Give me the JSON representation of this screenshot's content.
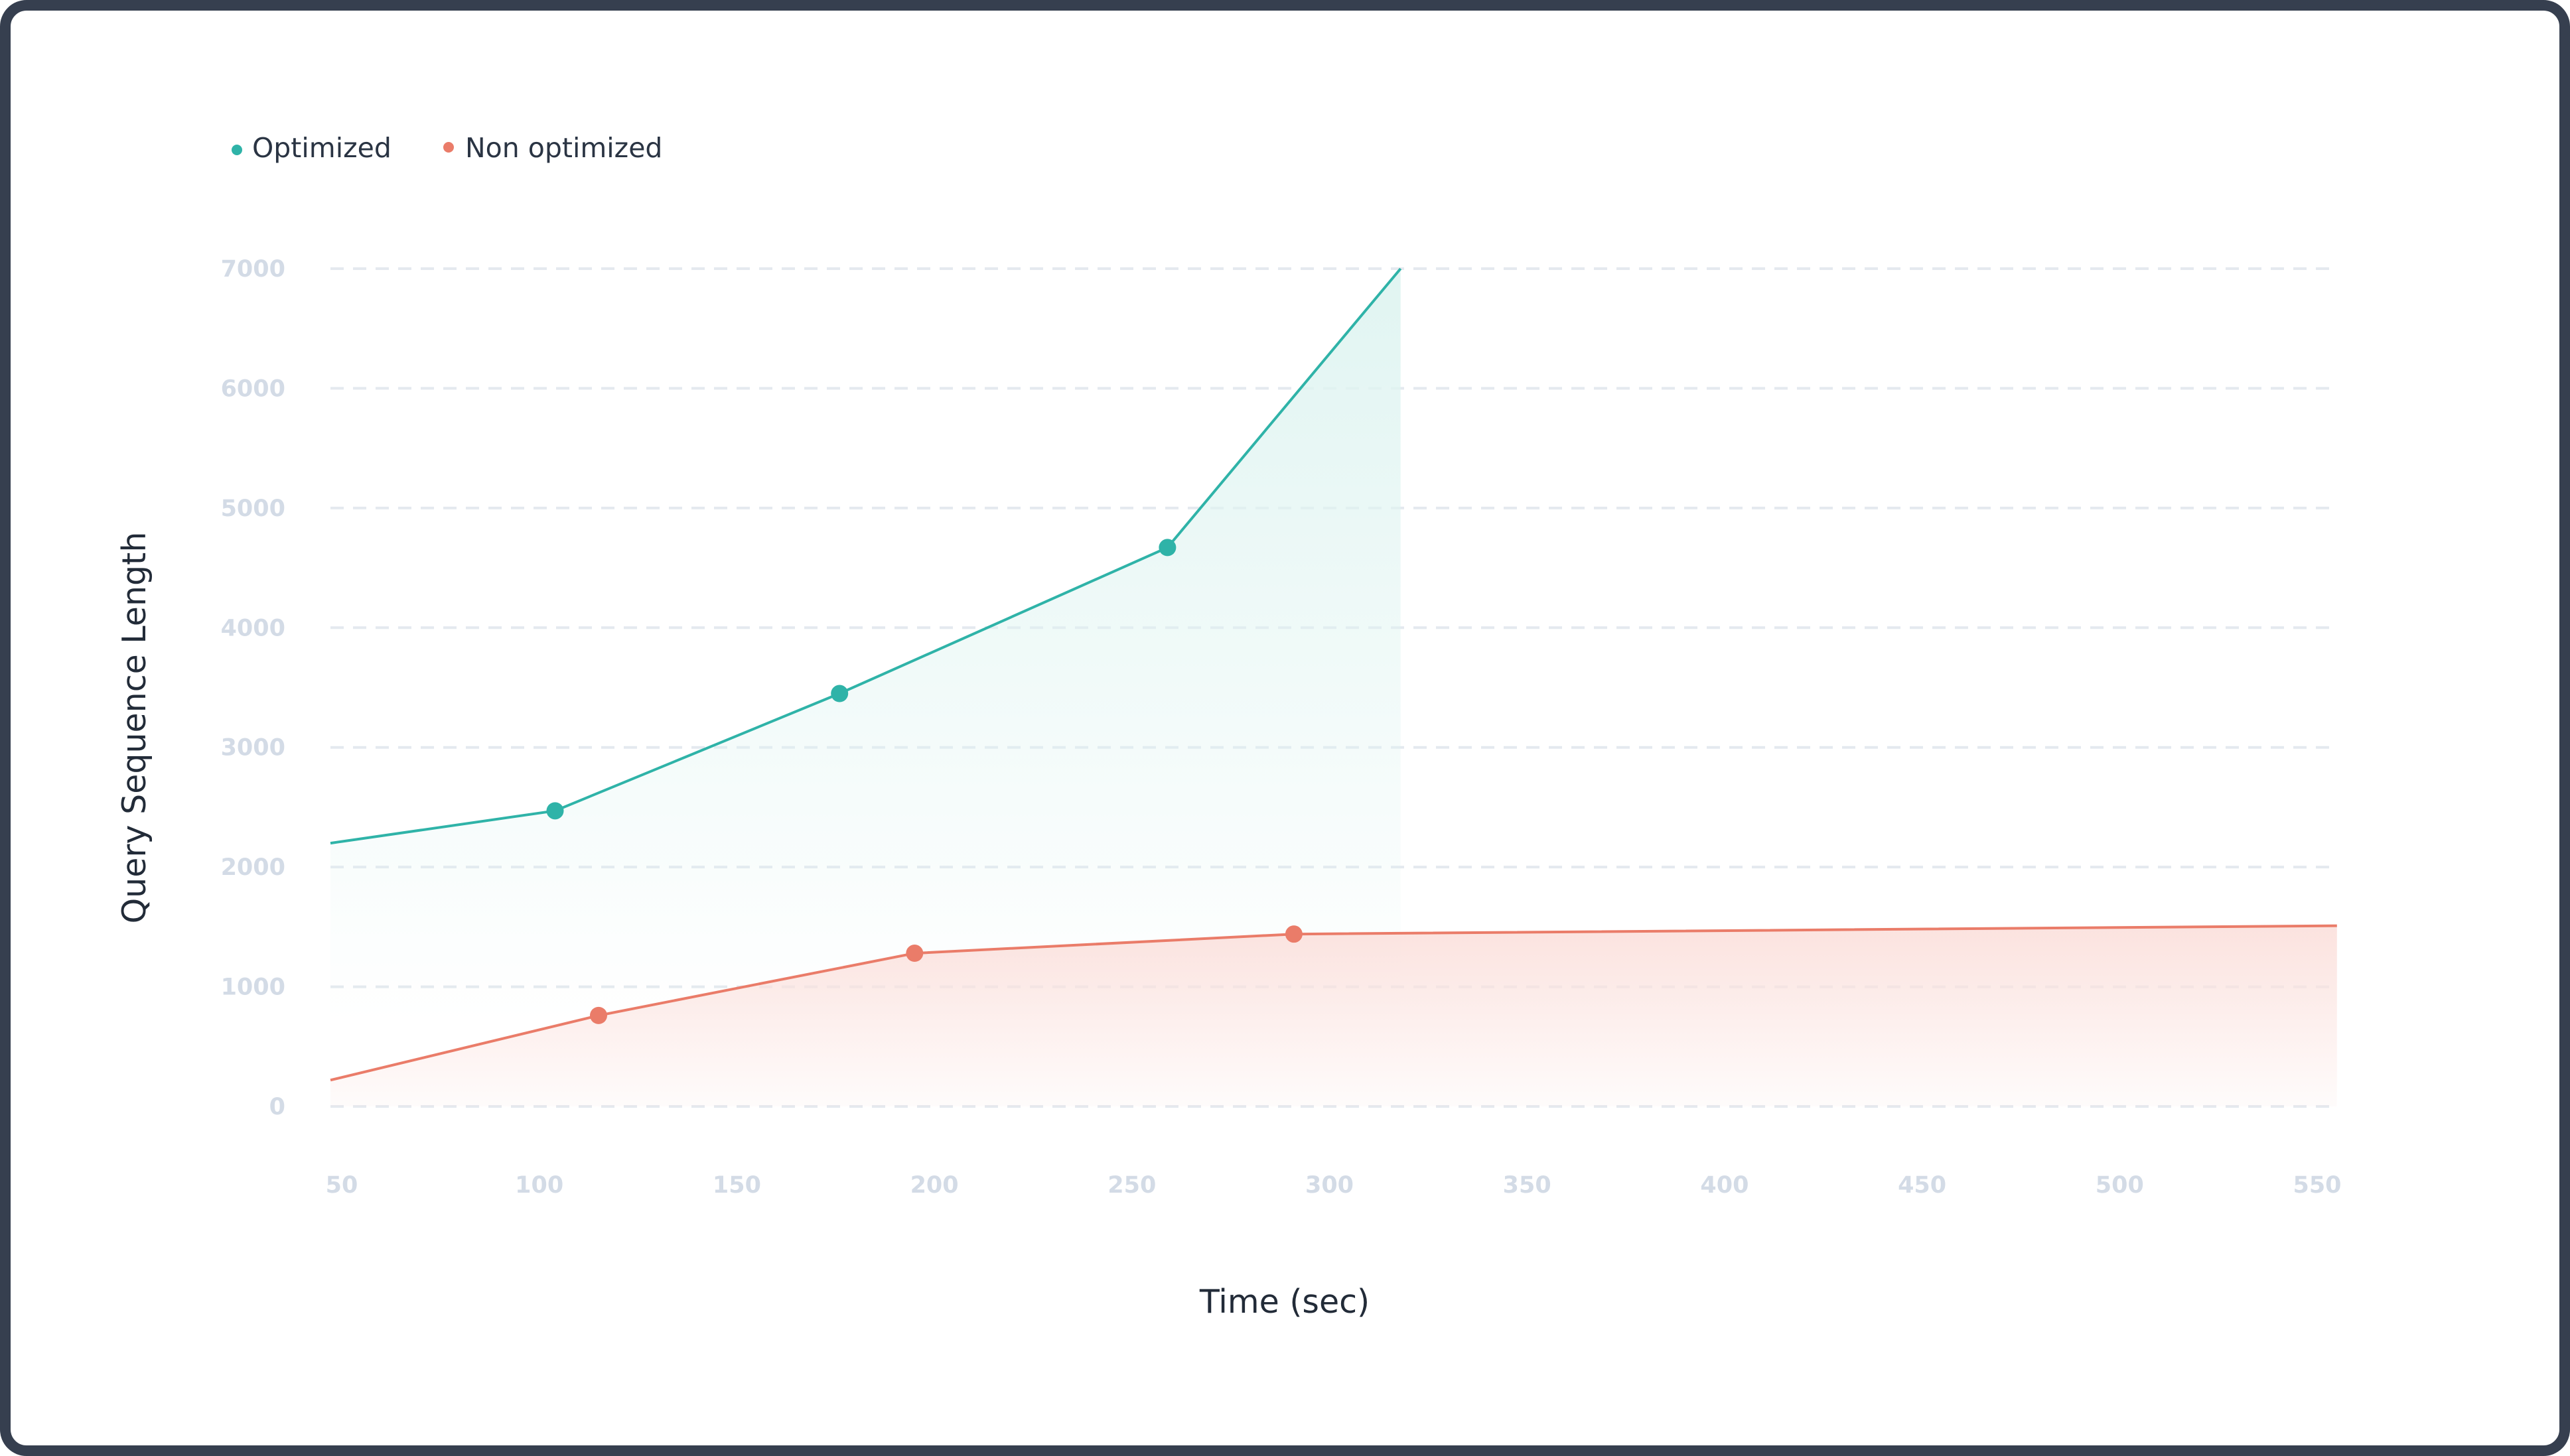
{
  "chart_data": {
    "type": "line",
    "title": "",
    "xlabel": "Time (sec)",
    "ylabel": "Query Sequence Length",
    "xlim": [
      50,
      555
    ],
    "ylim": [
      0,
      7000
    ],
    "x_ticks": [
      50,
      100,
      150,
      200,
      250,
      300,
      350,
      400,
      450,
      500,
      550
    ],
    "y_ticks": [
      0,
      1000,
      2000,
      3000,
      4000,
      5000,
      6000,
      7000
    ],
    "grid": true,
    "legend_position": "top-left",
    "series": [
      {
        "name": "Optimized",
        "color": "#2fb3a8",
        "fill": "#dff4f1",
        "points": [
          {
            "x": 47,
            "y": 2200,
            "marker": false
          },
          {
            "x": 104,
            "y": 2470,
            "marker": true
          },
          {
            "x": 176,
            "y": 3450,
            "marker": true
          },
          {
            "x": 259,
            "y": 4670,
            "marker": true
          },
          {
            "x": 318,
            "y": 7000,
            "marker": false
          }
        ]
      },
      {
        "name": "Non optimized",
        "color": "#ea7c69",
        "fill": "#fbe1dd",
        "points": [
          {
            "x": 47,
            "y": 220,
            "marker": false
          },
          {
            "x": 115,
            "y": 760,
            "marker": true
          },
          {
            "x": 195,
            "y": 1280,
            "marker": true
          },
          {
            "x": 291,
            "y": 1440,
            "marker": true
          },
          {
            "x": 555,
            "y": 1510,
            "marker": false
          }
        ]
      }
    ]
  }
}
